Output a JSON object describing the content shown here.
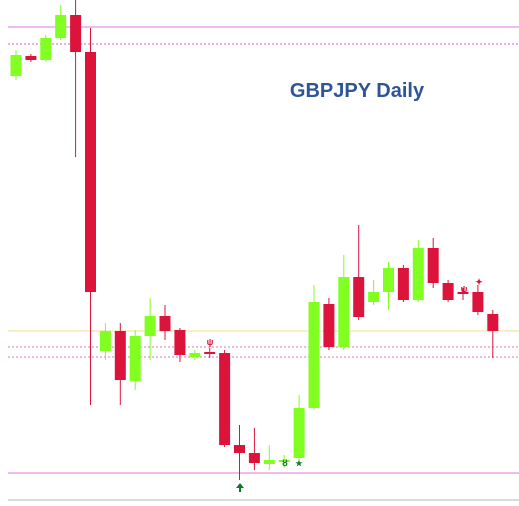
{
  "chart_data": {
    "type": "candlestick",
    "title": "GBPJPY Daily",
    "categories": [
      null,
      null,
      null,
      null,
      null,
      null,
      null,
      null,
      null,
      null,
      null,
      null,
      null,
      null,
      null,
      null,
      null,
      null,
      null,
      null,
      null,
      null,
      null,
      null,
      null,
      null,
      null,
      null,
      null,
      null,
      null,
      null,
      null
    ],
    "open": [
      430,
      450,
      446,
      468,
      491,
      454,
      155,
      175,
      125,
      170,
      190,
      176,
      149,
      154,
      153,
      61,
      53,
      42,
      44,
      48,
      98,
      202,
      159,
      229,
      204,
      214,
      238,
      206,
      258,
      223,
      214,
      214,
      192
    ],
    "high": [
      456,
      452,
      471,
      501,
      506,
      478,
      183,
      183,
      176,
      208,
      201,
      178,
      156,
      158,
      156,
      81,
      78,
      61,
      51,
      111,
      221,
      208,
      251,
      281,
      226,
      244,
      241,
      266,
      268,
      226,
      218,
      221,
      196
    ],
    "low": [
      426,
      444,
      444,
      466,
      349,
      101,
      146,
      101,
      116,
      146,
      166,
      144,
      146,
      148,
      59,
      26,
      36,
      36,
      38,
      46,
      96,
      156,
      156,
      186,
      201,
      196,
      204,
      204,
      218,
      204,
      206,
      191,
      148
    ],
    "close": [
      451,
      446,
      468,
      491,
      454,
      214,
      175,
      126,
      170,
      190,
      175,
      151,
      153,
      152,
      61,
      53,
      43,
      46,
      46,
      98,
      204,
      159,
      229,
      189,
      214,
      238,
      206,
      258,
      223,
      206,
      212,
      194,
      175
    ],
    "up_color": "#80ff20",
    "down_color": "#dc143c",
    "ylim": [
      0,
      506
    ],
    "levels": [
      {
        "value": 479,
        "color": "#e27ae2",
        "style": "solid"
      },
      {
        "value": 462,
        "color": "#cc66cc",
        "style": "dotted"
      },
      {
        "value": 175,
        "color": "#eee08a",
        "style": "solid"
      },
      {
        "value": 159,
        "color": "#d877c0",
        "style": "dotted"
      },
      {
        "value": 149,
        "color": "#d877c0",
        "style": "dotted"
      },
      {
        "value": 33,
        "color": "#e27ae2",
        "style": "solid"
      }
    ]
  }
}
